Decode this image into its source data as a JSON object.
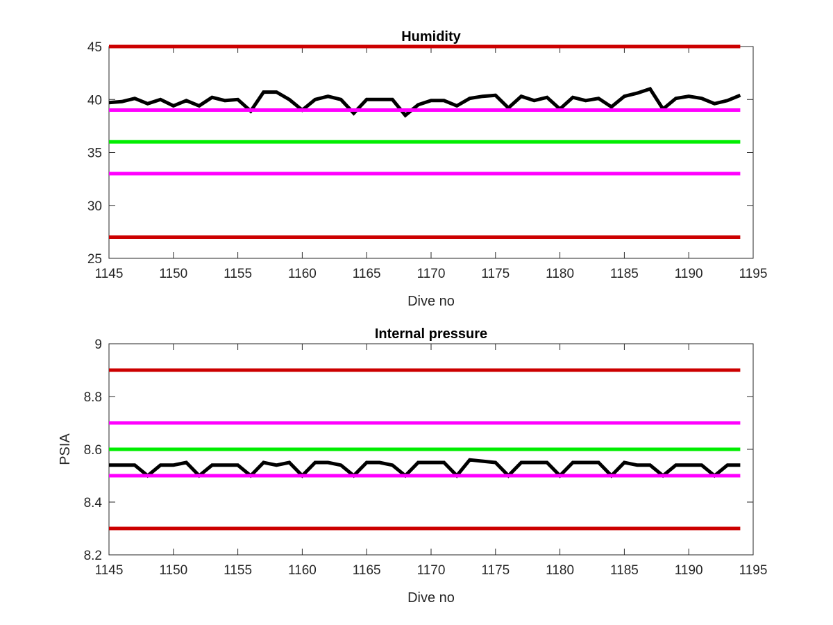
{
  "chart_data": [
    {
      "type": "line",
      "title": "Humidity",
      "xlabel": "Dive no",
      "ylabel": "",
      "xlim": [
        1145,
        1195
      ],
      "ylim": [
        25,
        45
      ],
      "xticks": [
        1145,
        1150,
        1155,
        1160,
        1165,
        1170,
        1175,
        1180,
        1185,
        1190,
        1195
      ],
      "yticks": [
        25,
        30,
        35,
        40,
        45
      ],
      "grid": false,
      "x_range": [
        1145,
        1194
      ],
      "series": [
        {
          "color": "#000000",
          "x": [
            1145,
            1146,
            1147,
            1148,
            1149,
            1150,
            1151,
            1152,
            1153,
            1154,
            1155,
            1156,
            1157,
            1158,
            1159,
            1160,
            1161,
            1162,
            1163,
            1164,
            1165,
            1166,
            1167,
            1168,
            1169,
            1170,
            1171,
            1172,
            1173,
            1174,
            1175,
            1176,
            1177,
            1178,
            1179,
            1180,
            1181,
            1182,
            1183,
            1184,
            1185,
            1186,
            1187,
            1188,
            1189,
            1190,
            1191,
            1192,
            1193,
            1194
          ],
          "values": [
            39.7,
            39.8,
            40.1,
            39.6,
            40.0,
            39.4,
            39.9,
            39.4,
            40.2,
            39.9,
            40.0,
            38.9,
            40.7,
            40.7,
            40.0,
            39.0,
            40.0,
            40.3,
            40.0,
            38.7,
            40.0,
            40.0,
            40.0,
            38.5,
            39.5,
            39.9,
            39.9,
            39.4,
            40.1,
            40.3,
            40.4,
            39.2,
            40.3,
            39.9,
            40.2,
            39.1,
            40.2,
            39.9,
            40.1,
            39.3,
            40.3,
            40.6,
            41.0,
            39.1,
            40.1,
            40.3,
            40.1,
            39.6,
            39.9,
            40.4
          ]
        },
        {
          "color": "#cc0000",
          "values": [
            45,
            45
          ]
        },
        {
          "color": "#ff00ff",
          "values": [
            39,
            39
          ]
        },
        {
          "color": "#00ee00",
          "values": [
            36,
            36
          ]
        },
        {
          "color": "#ff00ff",
          "values": [
            33,
            33
          ]
        },
        {
          "color": "#cc0000",
          "values": [
            27,
            27
          ]
        }
      ]
    },
    {
      "type": "line",
      "title": "Internal pressure",
      "xlabel": "Dive no",
      "ylabel": "PSIA",
      "xlim": [
        1145,
        1195
      ],
      "ylim": [
        8.2,
        9
      ],
      "xticks": [
        1145,
        1150,
        1155,
        1160,
        1165,
        1170,
        1175,
        1180,
        1185,
        1190,
        1195
      ],
      "yticks": [
        8.2,
        8.4,
        8.6,
        8.8,
        9
      ],
      "grid": false,
      "x_range": [
        1145,
        1194
      ],
      "series": [
        {
          "color": "#000000",
          "x": [
            1145,
            1146,
            1147,
            1148,
            1149,
            1150,
            1151,
            1152,
            1153,
            1154,
            1155,
            1156,
            1157,
            1158,
            1159,
            1160,
            1161,
            1162,
            1163,
            1164,
            1165,
            1166,
            1167,
            1168,
            1169,
            1170,
            1171,
            1172,
            1173,
            1174,
            1175,
            1176,
            1177,
            1178,
            1179,
            1180,
            1181,
            1182,
            1183,
            1184,
            1185,
            1186,
            1187,
            1188,
            1189,
            1190,
            1191,
            1192,
            1193,
            1194
          ],
          "values": [
            8.54,
            8.54,
            8.54,
            8.5,
            8.54,
            8.54,
            8.55,
            8.5,
            8.54,
            8.54,
            8.54,
            8.5,
            8.55,
            8.54,
            8.55,
            8.5,
            8.55,
            8.55,
            8.54,
            8.5,
            8.55,
            8.55,
            8.54,
            8.5,
            8.55,
            8.55,
            8.55,
            8.5,
            8.56,
            8.555,
            8.55,
            8.5,
            8.55,
            8.55,
            8.55,
            8.5,
            8.55,
            8.55,
            8.55,
            8.5,
            8.55,
            8.54,
            8.54,
            8.5,
            8.54,
            8.54,
            8.54,
            8.5,
            8.54,
            8.54
          ]
        },
        {
          "color": "#cc0000",
          "values": [
            8.9,
            8.9
          ]
        },
        {
          "color": "#ff00ff",
          "values": [
            8.7,
            8.7
          ]
        },
        {
          "color": "#00ee00",
          "values": [
            8.6,
            8.6
          ]
        },
        {
          "color": "#ff00ff",
          "values": [
            8.5,
            8.5
          ]
        },
        {
          "color": "#cc0000",
          "values": [
            8.3,
            8.3
          ]
        }
      ]
    }
  ]
}
